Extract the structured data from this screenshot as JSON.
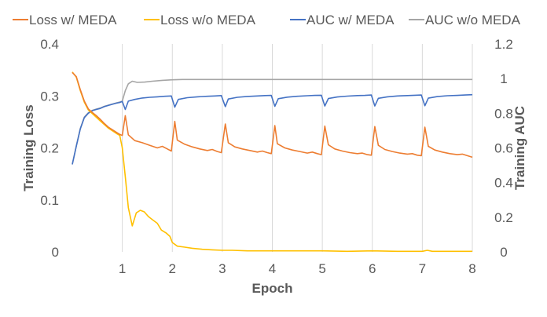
{
  "chart_data": {
    "type": "line",
    "xlabel": "Epoch",
    "ylabel": "Training Loss",
    "y2label": "Training AUC",
    "xlim": [
      0,
      8
    ],
    "ylim": [
      0,
      0.4
    ],
    "y2lim": [
      0,
      1.2
    ],
    "x_ticks": [
      "1",
      "2",
      "3",
      "4",
      "5",
      "6",
      "7",
      "8"
    ],
    "y_ticks": [
      "0",
      "0.1",
      "0.2",
      "0.3",
      "0.4"
    ],
    "y2_ticks": [
      "0",
      "0.2",
      "0.4",
      "0.6",
      "0.8",
      "1",
      "1.2"
    ],
    "grid": "vertical",
    "legend_position": "top",
    "series": [
      {
        "name": "Loss w/ MEDA",
        "axis": "left",
        "color": "#ED7D31",
        "points": [
          [
            0.0,
            0.345
          ],
          [
            0.08,
            0.337
          ],
          [
            0.16,
            0.312
          ],
          [
            0.24,
            0.29
          ],
          [
            0.32,
            0.275
          ],
          [
            0.4,
            0.268
          ],
          [
            0.48,
            0.262
          ],
          [
            0.56,
            0.255
          ],
          [
            0.64,
            0.247
          ],
          [
            0.72,
            0.24
          ],
          [
            0.8,
            0.235
          ],
          [
            0.88,
            0.23
          ],
          [
            0.95,
            0.226
          ],
          [
            1.0,
            0.224
          ],
          [
            1.06,
            0.262
          ],
          [
            1.12,
            0.225
          ],
          [
            1.25,
            0.214
          ],
          [
            1.4,
            0.21
          ],
          [
            1.55,
            0.205
          ],
          [
            1.7,
            0.2
          ],
          [
            1.8,
            0.203
          ],
          [
            1.9,
            0.198
          ],
          [
            1.98,
            0.194
          ],
          [
            2.05,
            0.251
          ],
          [
            2.1,
            0.215
          ],
          [
            2.25,
            0.207
          ],
          [
            2.4,
            0.202
          ],
          [
            2.55,
            0.198
          ],
          [
            2.7,
            0.195
          ],
          [
            2.8,
            0.197
          ],
          [
            2.9,
            0.193
          ],
          [
            2.98,
            0.191
          ],
          [
            3.06,
            0.246
          ],
          [
            3.12,
            0.21
          ],
          [
            3.25,
            0.202
          ],
          [
            3.4,
            0.198
          ],
          [
            3.55,
            0.195
          ],
          [
            3.7,
            0.192
          ],
          [
            3.8,
            0.194
          ],
          [
            3.9,
            0.191
          ],
          [
            3.98,
            0.189
          ],
          [
            4.05,
            0.243
          ],
          [
            4.1,
            0.208
          ],
          [
            4.25,
            0.2
          ],
          [
            4.4,
            0.196
          ],
          [
            4.55,
            0.193
          ],
          [
            4.7,
            0.19
          ],
          [
            4.8,
            0.192
          ],
          [
            4.9,
            0.189
          ],
          [
            4.98,
            0.187
          ],
          [
            5.05,
            0.242
          ],
          [
            5.12,
            0.206
          ],
          [
            5.25,
            0.198
          ],
          [
            5.4,
            0.194
          ],
          [
            5.55,
            0.191
          ],
          [
            5.7,
            0.189
          ],
          [
            5.8,
            0.19
          ],
          [
            5.9,
            0.187
          ],
          [
            5.98,
            0.186
          ],
          [
            6.05,
            0.241
          ],
          [
            6.12,
            0.205
          ],
          [
            6.25,
            0.197
          ],
          [
            6.4,
            0.193
          ],
          [
            6.55,
            0.19
          ],
          [
            6.7,
            0.188
          ],
          [
            6.8,
            0.189
          ],
          [
            6.9,
            0.186
          ],
          [
            6.98,
            0.185
          ],
          [
            7.05,
            0.24
          ],
          [
            7.12,
            0.203
          ],
          [
            7.25,
            0.196
          ],
          [
            7.4,
            0.192
          ],
          [
            7.55,
            0.189
          ],
          [
            7.7,
            0.187
          ],
          [
            7.8,
            0.188
          ],
          [
            7.9,
            0.185
          ],
          [
            8.0,
            0.182
          ]
        ]
      },
      {
        "name": "Loss w/o MEDA",
        "axis": "left",
        "color": "#FFC000",
        "points": [
          [
            0.0,
            0.346
          ],
          [
            0.08,
            0.336
          ],
          [
            0.16,
            0.31
          ],
          [
            0.24,
            0.288
          ],
          [
            0.32,
            0.273
          ],
          [
            0.4,
            0.266
          ],
          [
            0.48,
            0.259
          ],
          [
            0.56,
            0.252
          ],
          [
            0.64,
            0.245
          ],
          [
            0.72,
            0.238
          ],
          [
            0.8,
            0.233
          ],
          [
            0.88,
            0.228
          ],
          [
            0.95,
            0.224
          ],
          [
            1.0,
            0.2
          ],
          [
            1.06,
            0.145
          ],
          [
            1.12,
            0.085
          ],
          [
            1.2,
            0.05
          ],
          [
            1.28,
            0.075
          ],
          [
            1.36,
            0.08
          ],
          [
            1.44,
            0.077
          ],
          [
            1.52,
            0.068
          ],
          [
            1.6,
            0.062
          ],
          [
            1.7,
            0.055
          ],
          [
            1.78,
            0.042
          ],
          [
            1.88,
            0.036
          ],
          [
            1.95,
            0.03
          ],
          [
            2.0,
            0.018
          ],
          [
            2.1,
            0.011
          ],
          [
            2.25,
            0.009
          ],
          [
            2.4,
            0.007
          ],
          [
            2.6,
            0.005
          ],
          [
            2.8,
            0.004
          ],
          [
            3.0,
            0.003
          ],
          [
            3.2,
            0.003
          ],
          [
            3.5,
            0.002
          ],
          [
            4.0,
            0.002
          ],
          [
            4.5,
            0.002
          ],
          [
            5.0,
            0.002
          ],
          [
            5.5,
            0.001
          ],
          [
            6.0,
            0.002
          ],
          [
            6.5,
            0.001
          ],
          [
            7.0,
            0.001
          ],
          [
            7.1,
            0.003
          ],
          [
            7.2,
            0.001
          ],
          [
            7.6,
            0.001
          ],
          [
            8.0,
            0.001
          ]
        ]
      },
      {
        "name": "AUC w/ MEDA",
        "axis": "right",
        "color": "#4472C4",
        "points": [
          [
            0.0,
            0.505
          ],
          [
            0.08,
            0.61
          ],
          [
            0.16,
            0.71
          ],
          [
            0.24,
            0.775
          ],
          [
            0.32,
            0.8
          ],
          [
            0.4,
            0.815
          ],
          [
            0.48,
            0.822
          ],
          [
            0.56,
            0.828
          ],
          [
            0.64,
            0.838
          ],
          [
            0.72,
            0.845
          ],
          [
            0.8,
            0.852
          ],
          [
            0.88,
            0.858
          ],
          [
            0.95,
            0.862
          ],
          [
            1.0,
            0.868
          ],
          [
            1.06,
            0.822
          ],
          [
            1.12,
            0.87
          ],
          [
            1.25,
            0.88
          ],
          [
            1.4,
            0.888
          ],
          [
            1.55,
            0.892
          ],
          [
            1.7,
            0.895
          ],
          [
            1.85,
            0.898
          ],
          [
            1.98,
            0.9
          ],
          [
            2.05,
            0.835
          ],
          [
            2.12,
            0.88
          ],
          [
            2.3,
            0.89
          ],
          [
            2.5,
            0.895
          ],
          [
            2.7,
            0.898
          ],
          [
            2.85,
            0.9
          ],
          [
            2.98,
            0.902
          ],
          [
            3.06,
            0.838
          ],
          [
            3.12,
            0.882
          ],
          [
            3.3,
            0.892
          ],
          [
            3.5,
            0.897
          ],
          [
            3.7,
            0.9
          ],
          [
            3.85,
            0.902
          ],
          [
            3.98,
            0.903
          ],
          [
            4.05,
            0.84
          ],
          [
            4.12,
            0.884
          ],
          [
            4.3,
            0.893
          ],
          [
            4.5,
            0.898
          ],
          [
            4.7,
            0.901
          ],
          [
            4.85,
            0.903
          ],
          [
            4.98,
            0.904
          ],
          [
            5.05,
            0.842
          ],
          [
            5.12,
            0.885
          ],
          [
            5.3,
            0.894
          ],
          [
            5.5,
            0.899
          ],
          [
            5.7,
            0.902
          ],
          [
            5.85,
            0.903
          ],
          [
            5.98,
            0.905
          ],
          [
            6.05,
            0.842
          ],
          [
            6.12,
            0.886
          ],
          [
            6.3,
            0.895
          ],
          [
            6.5,
            0.9
          ],
          [
            6.7,
            0.902
          ],
          [
            6.85,
            0.904
          ],
          [
            6.98,
            0.905
          ],
          [
            7.05,
            0.843
          ],
          [
            7.12,
            0.887
          ],
          [
            7.3,
            0.896
          ],
          [
            7.5,
            0.901
          ],
          [
            7.7,
            0.903
          ],
          [
            7.85,
            0.905
          ],
          [
            8.0,
            0.907
          ]
        ]
      },
      {
        "name": "AUC w/o MEDA",
        "axis": "right",
        "color": "#A5A5A5",
        "points": [
          [
            0.0,
            0.505
          ],
          [
            0.08,
            0.612
          ],
          [
            0.16,
            0.712
          ],
          [
            0.24,
            0.778
          ],
          [
            0.32,
            0.803
          ],
          [
            0.4,
            0.817
          ],
          [
            0.48,
            0.824
          ],
          [
            0.56,
            0.83
          ],
          [
            0.64,
            0.84
          ],
          [
            0.72,
            0.847
          ],
          [
            0.8,
            0.853
          ],
          [
            0.88,
            0.86
          ],
          [
            0.95,
            0.865
          ],
          [
            1.0,
            0.87
          ],
          [
            1.06,
            0.93
          ],
          [
            1.12,
            0.97
          ],
          [
            1.2,
            0.985
          ],
          [
            1.3,
            0.978
          ],
          [
            1.45,
            0.98
          ],
          [
            1.6,
            0.985
          ],
          [
            1.8,
            0.99
          ],
          [
            2.0,
            0.993
          ],
          [
            2.2,
            0.995
          ],
          [
            2.5,
            0.995
          ],
          [
            3.0,
            0.995
          ],
          [
            4.0,
            0.995
          ],
          [
            5.0,
            0.995
          ],
          [
            6.0,
            0.995
          ],
          [
            7.0,
            0.995
          ],
          [
            8.0,
            0.995
          ]
        ]
      }
    ]
  }
}
